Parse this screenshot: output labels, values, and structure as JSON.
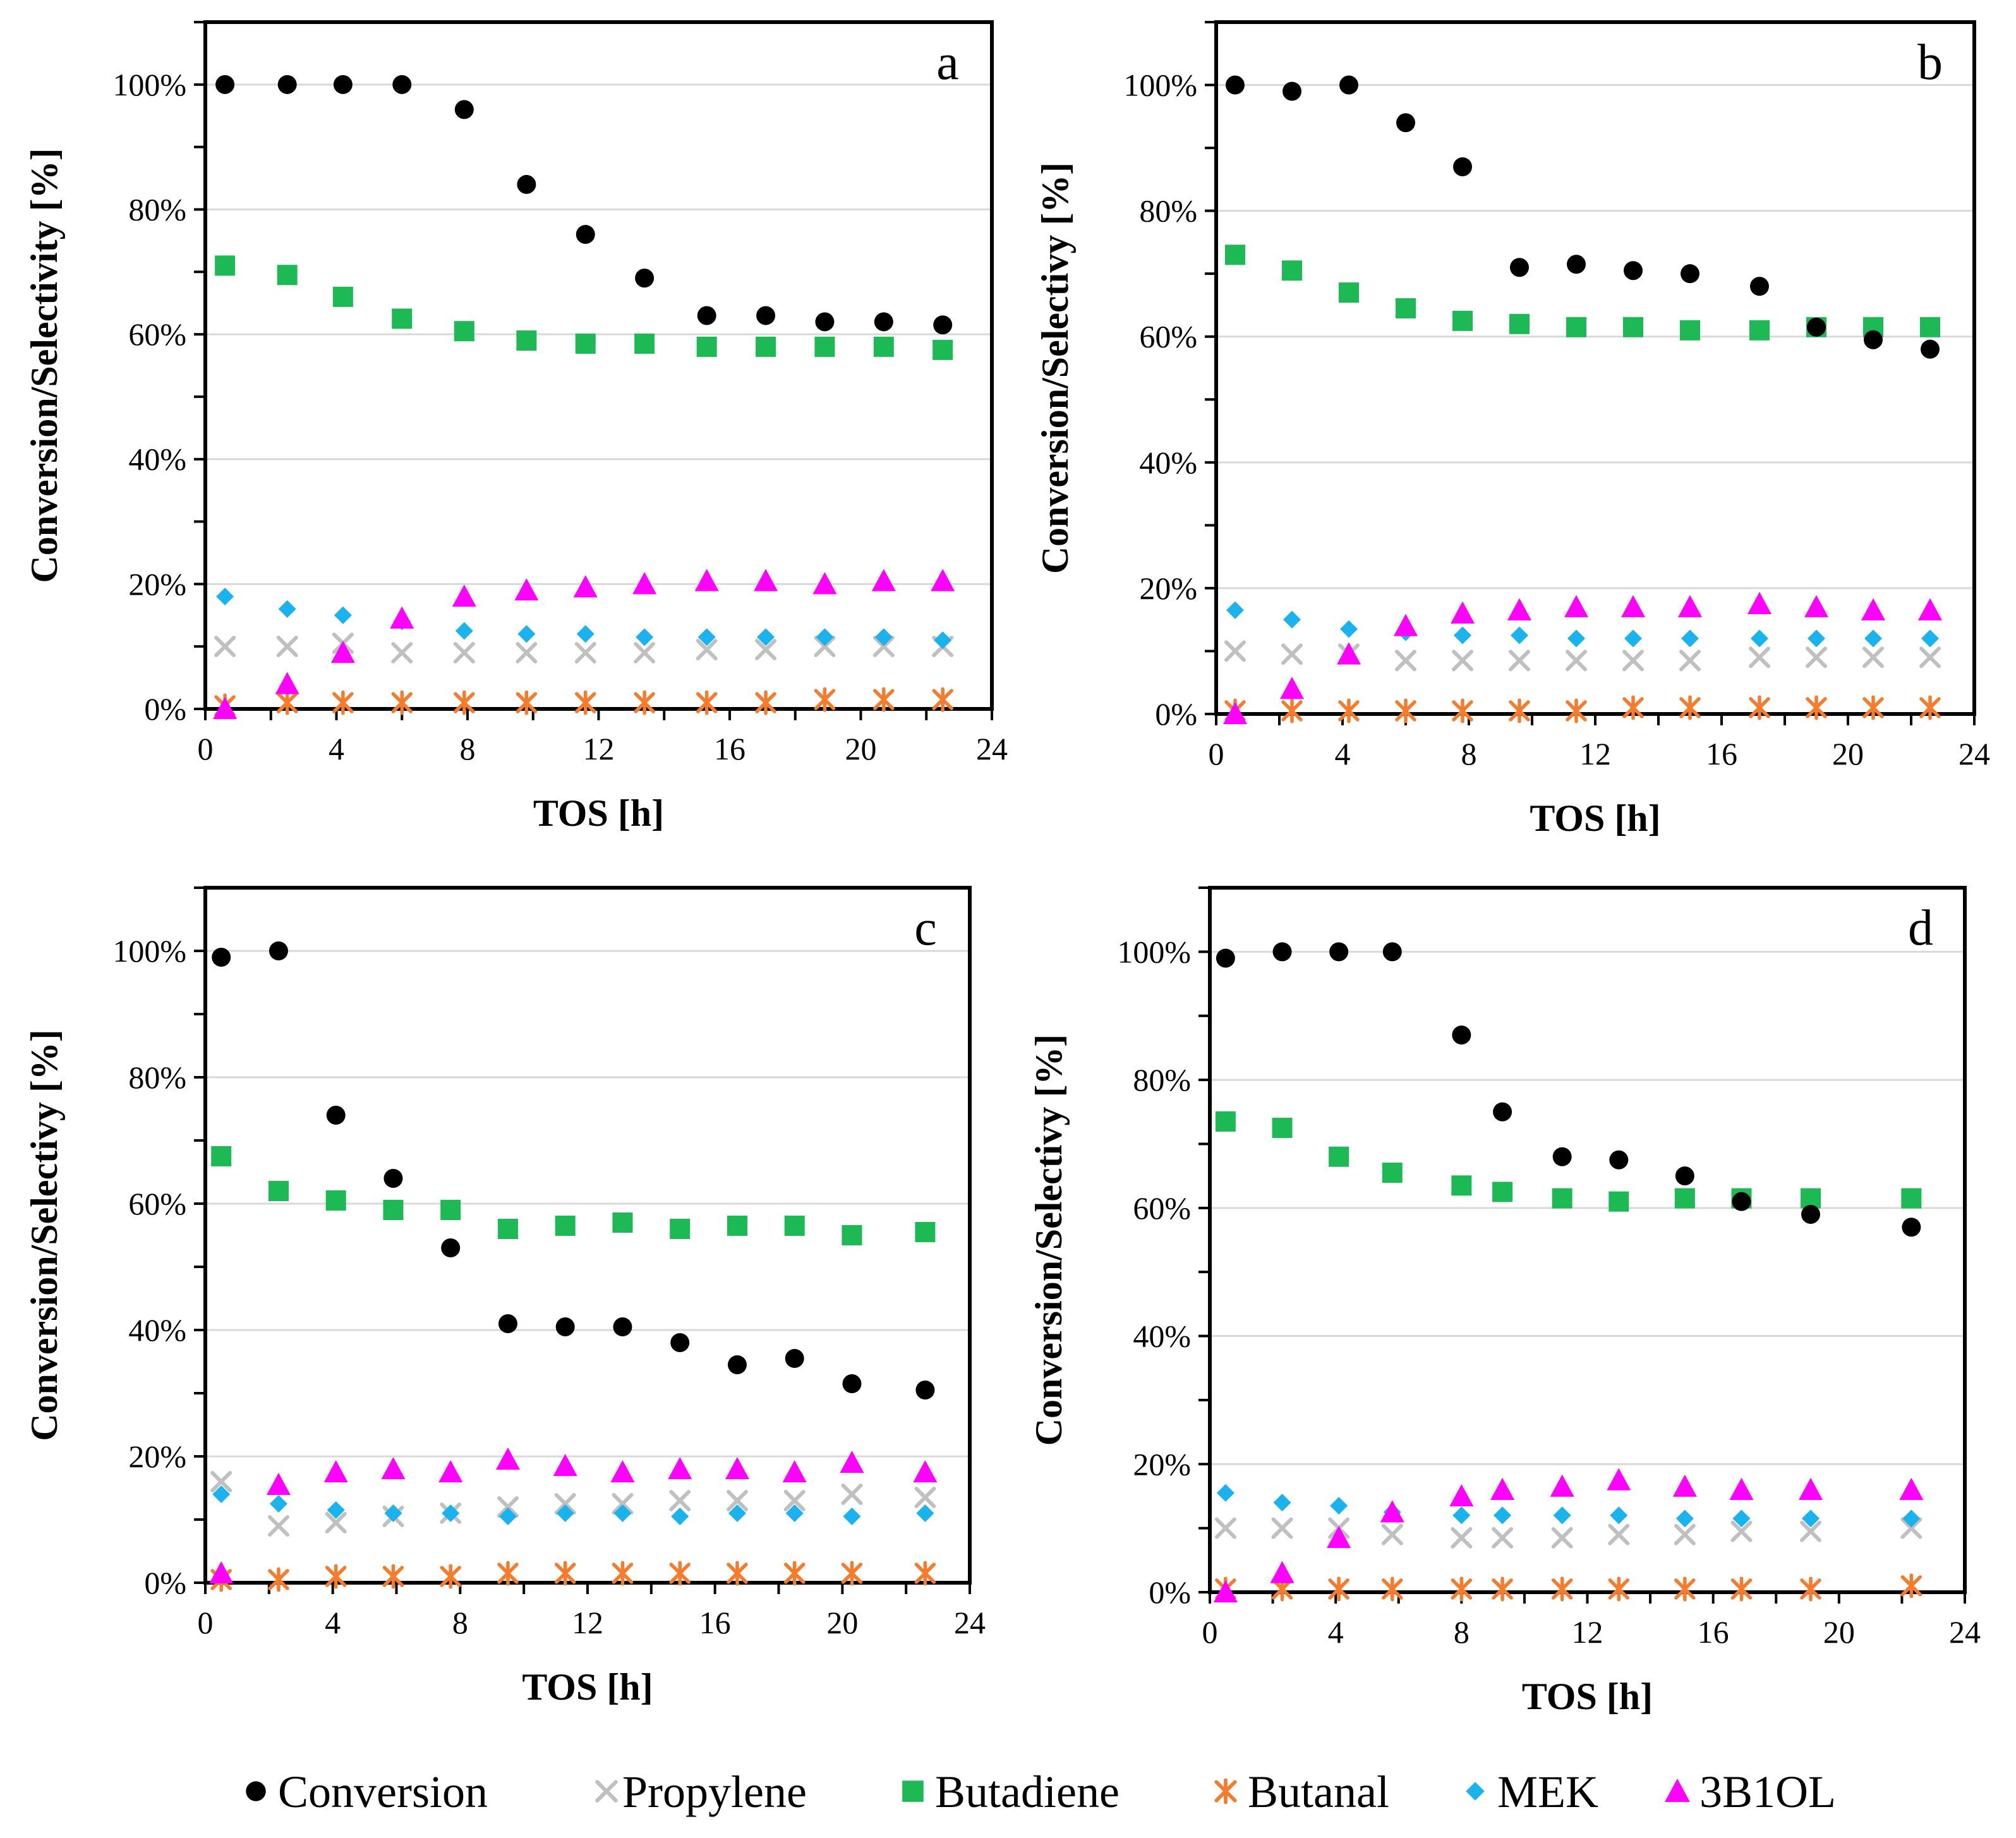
{
  "colors": {
    "conversion": "#000000",
    "propylene": "#c0c0c0",
    "butadiene": "#1db954",
    "butanal": "#f47c2c",
    "mek": "#1ab3ee",
    "b3ol": "#ff00ff",
    "grid": "#d9d9d9"
  },
  "legend": [
    {
      "key": "conversion",
      "label": "Conversion",
      "marker": "circle"
    },
    {
      "key": "propylene",
      "label": "Propylene",
      "marker": "x"
    },
    {
      "key": "butadiene",
      "label": "Butadiene",
      "marker": "square"
    },
    {
      "key": "butanal",
      "label": "Butanal",
      "marker": "star"
    },
    {
      "key": "mek",
      "label": "MEK",
      "marker": "diamond"
    },
    {
      "key": "b3ol",
      "label": "3B1OL",
      "marker": "triangle"
    }
  ],
  "chart_data": [
    {
      "type": "scatter",
      "panel": "a",
      "xlabel": "TOS [h]",
      "ylabel": "Conversion/Selectivity [%]",
      "xlim": [
        0,
        24
      ],
      "ylim": [
        0,
        1.1
      ],
      "xticks": [
        0,
        4,
        8,
        12,
        16,
        20,
        24
      ],
      "yticks": [
        0,
        0.2,
        0.4,
        0.6,
        0.8,
        1.0
      ],
      "ytick_labels": [
        "0%",
        "20%",
        "40%",
        "60%",
        "80%",
        "100%"
      ],
      "series": [
        {
          "key": "conversion",
          "x": [
            0.6,
            2.5,
            4.2,
            6.0,
            7.9,
            9.8,
            11.6,
            13.4,
            15.3,
            17.1,
            18.9,
            20.7,
            22.5
          ],
          "values": [
            1.0,
            1.0,
            1.0,
            1.0,
            0.96,
            0.84,
            0.76,
            0.69,
            0.63,
            0.63,
            0.62,
            0.62,
            0.615
          ]
        },
        {
          "key": "butadiene",
          "x": [
            0.6,
            2.5,
            4.2,
            6.0,
            7.9,
            9.8,
            11.6,
            13.4,
            15.3,
            17.1,
            18.9,
            20.7,
            22.5
          ],
          "values": [
            0.71,
            0.695,
            0.66,
            0.625,
            0.605,
            0.59,
            0.585,
            0.585,
            0.58,
            0.58,
            0.58,
            0.58,
            0.575
          ]
        },
        {
          "key": "b3ol",
          "x": [
            0.6,
            2.5,
            4.2,
            6.0,
            7.9,
            9.8,
            11.6,
            13.4,
            15.3,
            17.1,
            18.9,
            20.7,
            22.5
          ],
          "values": [
            0.0,
            0.04,
            0.09,
            0.145,
            0.18,
            0.19,
            0.195,
            0.2,
            0.205,
            0.205,
            0.2,
            0.205,
            0.205
          ]
        },
        {
          "key": "mek",
          "x": [
            0.6,
            2.5,
            4.2,
            6.0,
            7.9,
            9.8,
            11.6,
            13.4,
            15.3,
            17.1,
            18.9,
            20.7,
            22.5
          ],
          "values": [
            0.18,
            0.16,
            0.15,
            0.14,
            0.125,
            0.12,
            0.12,
            0.115,
            0.115,
            0.115,
            0.115,
            0.115,
            0.11
          ]
        },
        {
          "key": "propylene",
          "x": [
            0.6,
            2.5,
            4.2,
            6.0,
            7.9,
            9.8,
            11.6,
            13.4,
            15.3,
            17.1,
            18.9,
            20.7,
            22.5
          ],
          "values": [
            0.1,
            0.1,
            0.105,
            0.09,
            0.09,
            0.09,
            0.09,
            0.09,
            0.095,
            0.095,
            0.1,
            0.1,
            0.1
          ]
        },
        {
          "key": "butanal",
          "x": [
            0.6,
            2.5,
            4.2,
            6.0,
            7.9,
            9.8,
            11.6,
            13.4,
            15.3,
            17.1,
            18.9,
            20.7,
            22.5
          ],
          "values": [
            0.005,
            0.01,
            0.01,
            0.01,
            0.01,
            0.01,
            0.01,
            0.01,
            0.01,
            0.01,
            0.015,
            0.015,
            0.015
          ]
        }
      ]
    },
    {
      "type": "scatter",
      "panel": "b",
      "xlabel": "TOS [h]",
      "ylabel": "Conversion/Selectivy [%]",
      "xlim": [
        0,
        24
      ],
      "ylim": [
        0,
        1.1
      ],
      "xticks": [
        0,
        4,
        8,
        12,
        16,
        20,
        24
      ],
      "yticks": [
        0,
        0.2,
        0.4,
        0.6,
        0.8,
        1.0
      ],
      "ytick_labels": [
        "0%",
        "20%",
        "40%",
        "60%",
        "80%",
        "100%"
      ],
      "series": [
        {
          "key": "conversion",
          "x": [
            0.6,
            2.4,
            4.2,
            6.0,
            7.8,
            9.6,
            11.4,
            13.2,
            15.0,
            17.2,
            19.0,
            20.8,
            22.6
          ],
          "values": [
            1.0,
            0.99,
            1.0,
            0.94,
            0.87,
            0.71,
            0.715,
            0.705,
            0.7,
            0.68,
            0.615,
            0.595,
            0.58
          ]
        },
        {
          "key": "butadiene",
          "x": [
            0.6,
            2.4,
            4.2,
            6.0,
            7.8,
            9.6,
            11.4,
            13.2,
            15.0,
            17.2,
            19.0,
            20.8,
            22.6
          ],
          "values": [
            0.73,
            0.705,
            0.67,
            0.645,
            0.625,
            0.62,
            0.615,
            0.615,
            0.61,
            0.61,
            0.615,
            0.615,
            0.615
          ]
        },
        {
          "key": "b3ol",
          "x": [
            0.6,
            2.4,
            4.2,
            6.0,
            7.8,
            9.6,
            11.4,
            13.2,
            15.0,
            17.2,
            19.0,
            20.8,
            22.6
          ],
          "values": [
            0.0,
            0.04,
            0.095,
            0.14,
            0.16,
            0.165,
            0.17,
            0.17,
            0.17,
            0.175,
            0.17,
            0.165,
            0.165
          ]
        },
        {
          "key": "mek",
          "x": [
            0.6,
            2.4,
            4.2,
            6.0,
            7.8,
            9.6,
            11.4,
            13.2,
            15.0,
            17.2,
            19.0,
            20.8,
            22.6
          ],
          "values": [
            0.165,
            0.15,
            0.135,
            0.13,
            0.125,
            0.125,
            0.12,
            0.12,
            0.12,
            0.12,
            0.12,
            0.12,
            0.12
          ]
        },
        {
          "key": "propylene",
          "x": [
            0.6,
            2.4,
            4.2,
            6.0,
            7.8,
            9.6,
            11.4,
            13.2,
            15.0,
            17.2,
            19.0,
            20.8,
            22.6
          ],
          "values": [
            0.1,
            0.095,
            0.095,
            0.085,
            0.085,
            0.085,
            0.085,
            0.085,
            0.085,
            0.09,
            0.09,
            0.09,
            0.09
          ]
        },
        {
          "key": "butanal",
          "x": [
            0.6,
            2.4,
            4.2,
            6.0,
            7.8,
            9.6,
            11.4,
            13.2,
            15.0,
            17.2,
            19.0,
            20.8,
            22.6
          ],
          "values": [
            0.005,
            0.005,
            0.005,
            0.005,
            0.005,
            0.005,
            0.005,
            0.01,
            0.01,
            0.01,
            0.01,
            0.01,
            0.01
          ]
        }
      ]
    },
    {
      "type": "scatter",
      "panel": "c",
      "xlabel": "TOS [h]",
      "ylabel": "Conversion/Selectivy [%]",
      "xlim": [
        0,
        24
      ],
      "ylim": [
        0,
        1.1
      ],
      "xticks": [
        0,
        4,
        8,
        12,
        16,
        20,
        24
      ],
      "yticks": [
        0,
        0.2,
        0.4,
        0.6,
        0.8,
        1.0
      ],
      "ytick_labels": [
        "0%",
        "20%",
        "40%",
        "60%",
        "80%",
        "100%"
      ],
      "series": [
        {
          "key": "conversion",
          "x": [
            0.5,
            2.3,
            4.1,
            5.9,
            7.7,
            9.5,
            11.3,
            13.1,
            14.9,
            16.7,
            18.5,
            20.3,
            22.6
          ],
          "values": [
            0.99,
            1.0,
            0.74,
            0.64,
            0.53,
            0.41,
            0.405,
            0.405,
            0.38,
            0.345,
            0.355,
            0.315,
            0.305
          ]
        },
        {
          "key": "butadiene",
          "x": [
            0.5,
            2.3,
            4.1,
            5.9,
            7.7,
            9.5,
            11.3,
            13.1,
            14.9,
            16.7,
            18.5,
            20.3,
            22.6
          ],
          "values": [
            0.675,
            0.62,
            0.605,
            0.59,
            0.59,
            0.56,
            0.565,
            0.57,
            0.56,
            0.565,
            0.565,
            0.55,
            0.555
          ]
        },
        {
          "key": "b3ol",
          "x": [
            0.5,
            2.3,
            4.1,
            5.9,
            7.7,
            9.5,
            11.3,
            13.1,
            14.9,
            16.7,
            18.5,
            20.3,
            22.6
          ],
          "values": [
            0.015,
            0.155,
            0.175,
            0.18,
            0.175,
            0.195,
            0.185,
            0.175,
            0.18,
            0.18,
            0.175,
            0.19,
            0.175
          ]
        },
        {
          "key": "mek",
          "x": [
            0.5,
            2.3,
            4.1,
            5.9,
            7.7,
            9.5,
            11.3,
            13.1,
            14.9,
            16.7,
            18.5,
            20.3,
            22.6
          ],
          "values": [
            0.14,
            0.125,
            0.115,
            0.11,
            0.11,
            0.105,
            0.11,
            0.11,
            0.105,
            0.11,
            0.11,
            0.105,
            0.11
          ]
        },
        {
          "key": "propylene",
          "x": [
            0.5,
            2.3,
            4.1,
            5.9,
            7.7,
            9.5,
            11.3,
            13.1,
            14.9,
            16.7,
            18.5,
            20.3,
            22.6
          ],
          "values": [
            0.16,
            0.09,
            0.095,
            0.105,
            0.11,
            0.12,
            0.125,
            0.125,
            0.13,
            0.13,
            0.13,
            0.14,
            0.135
          ]
        },
        {
          "key": "butanal",
          "x": [
            0.5,
            2.3,
            4.1,
            5.9,
            7.7,
            9.5,
            11.3,
            13.1,
            14.9,
            16.7,
            18.5,
            20.3,
            22.6
          ],
          "values": [
            0.005,
            0.005,
            0.01,
            0.01,
            0.01,
            0.015,
            0.015,
            0.015,
            0.015,
            0.015,
            0.015,
            0.015,
            0.015
          ]
        }
      ]
    },
    {
      "type": "scatter",
      "panel": "d",
      "xlabel": "TOS [h]",
      "ylabel": "Conversion/Selectivy [%]",
      "xlim": [
        0,
        24
      ],
      "ylim": [
        0,
        1.1
      ],
      "xticks": [
        0,
        4,
        8,
        12,
        16,
        20,
        24
      ],
      "yticks": [
        0,
        0.2,
        0.4,
        0.6,
        0.8,
        1.0
      ],
      "ytick_labels": [
        "0%",
        "20%",
        "40%",
        "60%",
        "80%",
        "100%"
      ],
      "series": [
        {
          "key": "conversion",
          "x": [
            0.5,
            2.3,
            4.1,
            5.8,
            8.0,
            9.3,
            11.2,
            13.0,
            15.1,
            16.9,
            19.1,
            22.3
          ],
          "values": [
            0.99,
            1.0,
            1.0,
            1.0,
            0.87,
            0.75,
            0.68,
            0.675,
            0.65,
            0.61,
            0.59,
            0.57
          ]
        },
        {
          "key": "butadiene",
          "x": [
            0.5,
            2.3,
            4.1,
            5.8,
            8.0,
            9.3,
            11.2,
            13.0,
            15.1,
            16.9,
            19.1,
            22.3
          ],
          "values": [
            0.735,
            0.725,
            0.68,
            0.655,
            0.635,
            0.625,
            0.615,
            0.61,
            0.615,
            0.615,
            0.615,
            0.615
          ]
        },
        {
          "key": "b3ol",
          "x": [
            0.5,
            2.3,
            4.1,
            5.8,
            8.0,
            9.3,
            11.2,
            13.0,
            15.1,
            16.9,
            19.1,
            22.3
          ],
          "values": [
            0.0,
            0.03,
            0.085,
            0.125,
            0.15,
            0.16,
            0.165,
            0.175,
            0.165,
            0.16,
            0.16,
            0.16
          ]
        },
        {
          "key": "mek",
          "x": [
            0.5,
            2.3,
            4.1,
            5.8,
            8.0,
            9.3,
            11.2,
            13.0,
            15.1,
            16.9,
            19.1,
            22.3
          ],
          "values": [
            0.155,
            0.14,
            0.135,
            0.125,
            0.12,
            0.12,
            0.12,
            0.12,
            0.115,
            0.115,
            0.115,
            0.115
          ]
        },
        {
          "key": "propylene",
          "x": [
            0.5,
            2.3,
            4.1,
            5.8,
            8.0,
            9.3,
            11.2,
            13.0,
            15.1,
            16.9,
            19.1,
            22.3
          ],
          "values": [
            0.1,
            0.1,
            0.1,
            0.09,
            0.085,
            0.085,
            0.085,
            0.09,
            0.09,
            0.095,
            0.095,
            0.1
          ]
        },
        {
          "key": "butanal",
          "x": [
            0.5,
            2.3,
            4.1,
            5.8,
            8.0,
            9.3,
            11.2,
            13.0,
            15.1,
            16.9,
            19.1,
            22.3
          ],
          "values": [
            0.005,
            0.005,
            0.005,
            0.005,
            0.005,
            0.005,
            0.005,
            0.005,
            0.005,
            0.005,
            0.005,
            0.01
          ]
        }
      ]
    }
  ]
}
